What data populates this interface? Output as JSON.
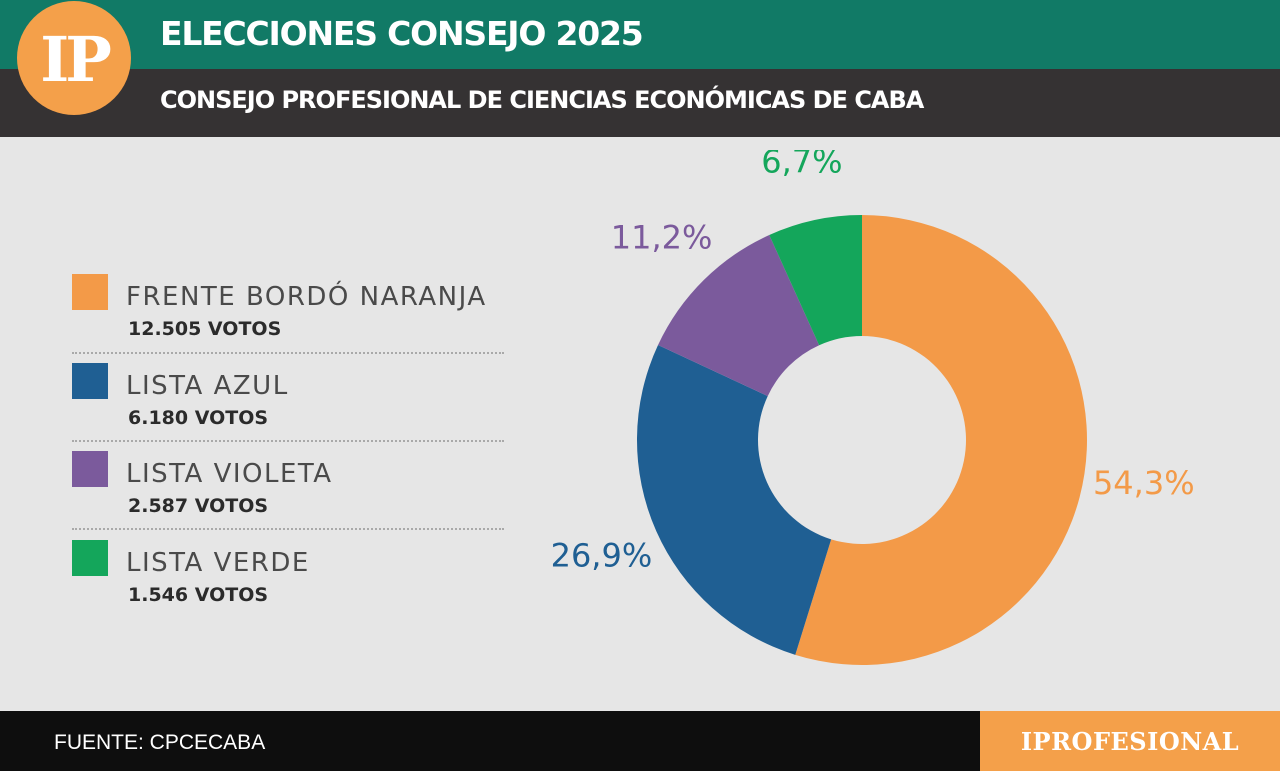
{
  "header": {
    "logo_text": "IP",
    "title": "ELECCIONES CONSEJO 2025",
    "subtitle": "CONSEJO PROFESIONAL DE CIENCIAS ECONÓMICAS DE CABA"
  },
  "legend": [
    {
      "name": "FRENTE BORDÓ NARANJA",
      "votes": "12.505 VOTOS",
      "color": "#f39a48"
    },
    {
      "name": "LISTA AZUL",
      "votes": "6.180 VOTOS",
      "color": "#1f5f93"
    },
    {
      "name": "LISTA VIOLETA",
      "votes": "2.587 VOTOS",
      "color": "#7b5a9c"
    },
    {
      "name": "LISTA VERDE",
      "votes": "1.546 VOTOS",
      "color": "#14a65b"
    }
  ],
  "chart_data": {
    "type": "pie",
    "donut": true,
    "categories": [
      "FRENTE BORDÓ NARANJA",
      "LISTA AZUL",
      "LISTA VIOLETA",
      "LISTA VERDE"
    ],
    "values": [
      54.3,
      26.9,
      11.2,
      6.7
    ],
    "votes": [
      12505,
      6180,
      2587,
      1546
    ],
    "labels": [
      "54,3%",
      "26,9%",
      "11,2%",
      "6,7%"
    ],
    "colors": [
      "#f39a48",
      "#1f5f93",
      "#7b5a9c",
      "#14a65b"
    ],
    "start": "12 o'clock, clockwise",
    "legend_position": "left"
  },
  "footer": {
    "source": "FUENTE: CPCECABA",
    "brand": "IPROFESIONAL"
  }
}
